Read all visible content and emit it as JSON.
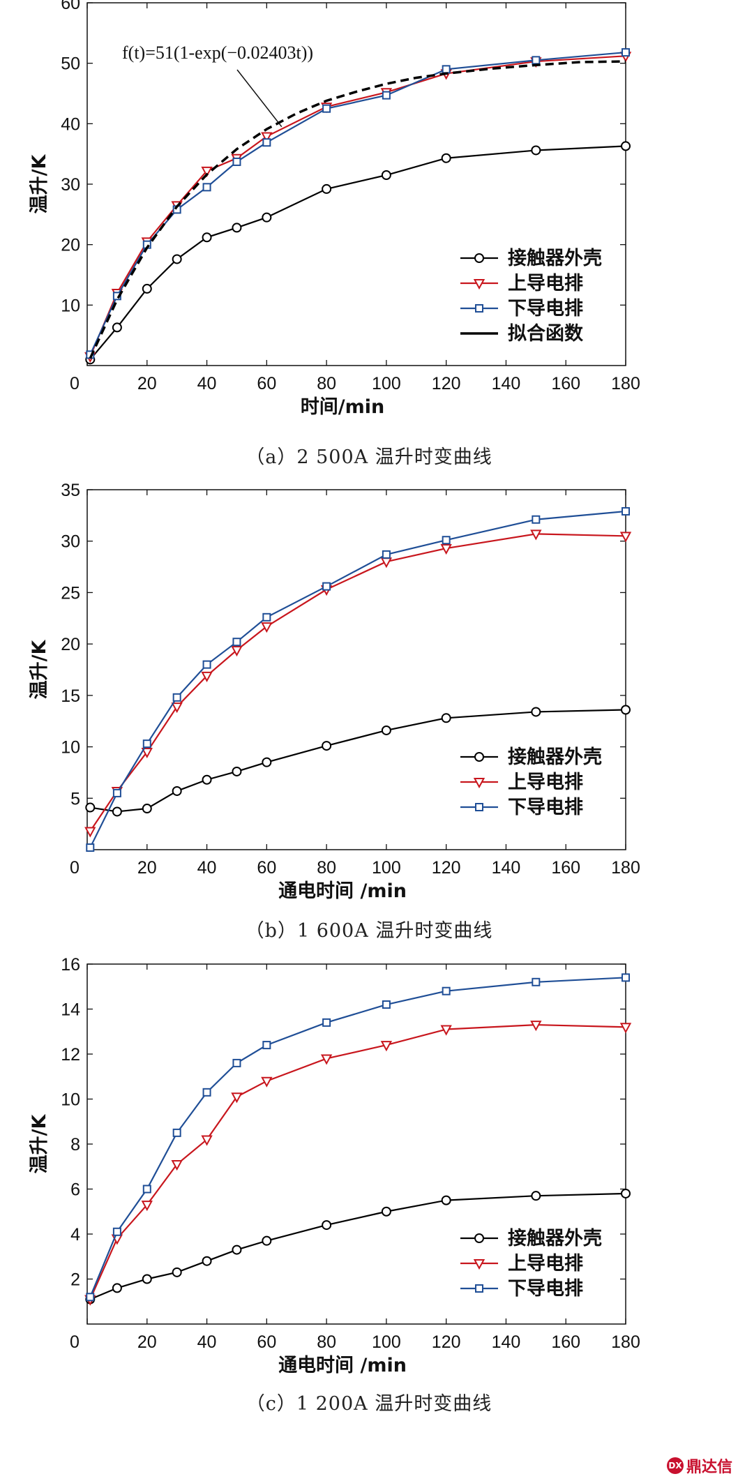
{
  "chart_data": [
    {
      "type": "line",
      "xlabel": "时间/min",
      "ylabel": "温升/K",
      "xlim": [
        0,
        180
      ],
      "ylim": [
        0,
        60
      ],
      "xticks": [
        0,
        20,
        40,
        60,
        80,
        100,
        120,
        140,
        160,
        180
      ],
      "yticks": [
        10,
        20,
        30,
        40,
        50,
        60
      ],
      "legend_position": "bottom-right",
      "annotation": "f(t)=51(1-exp(−0.02403t))",
      "caption": "（a）2 500A 温升时变曲线",
      "series": [
        {
          "name": "接触器外壳",
          "color": "#000000",
          "marker": "circle",
          "x": [
            1,
            10,
            20,
            30,
            40,
            50,
            60,
            80,
            100,
            120,
            150,
            180
          ],
          "y": [
            1.0,
            6.3,
            12.7,
            17.6,
            21.2,
            22.8,
            24.5,
            29.2,
            31.5,
            34.3,
            35.6,
            36.3
          ]
        },
        {
          "name": "上导电排",
          "color": "#c8161d",
          "marker": "triangle-down",
          "x": [
            1,
            10,
            20,
            30,
            40,
            50,
            60,
            80,
            100,
            120,
            150,
            180
          ],
          "y": [
            1.5,
            12.0,
            20.5,
            26.5,
            32.2,
            34.3,
            37.9,
            42.8,
            45.2,
            48.3,
            50.3,
            51.2
          ]
        },
        {
          "name": "下导电排",
          "color": "#1f4e96",
          "marker": "square",
          "x": [
            1,
            10,
            20,
            30,
            40,
            50,
            60,
            80,
            100,
            120,
            150,
            180
          ],
          "y": [
            1.8,
            11.5,
            20.0,
            25.8,
            29.5,
            33.7,
            36.9,
            42.5,
            44.7,
            49.0,
            50.5,
            51.8
          ]
        },
        {
          "name": "拟合函数",
          "color": "#000000",
          "marker": "none",
          "dash": true,
          "x": [
            1,
            10,
            20,
            30,
            40,
            50,
            60,
            70,
            80,
            90,
            100,
            110,
            120,
            135,
            150,
            165,
            180
          ],
          "y": [
            1.2,
            10.9,
            19.5,
            26.3,
            31.6,
            35.8,
            39.1,
            41.7,
            43.8,
            45.3,
            46.6,
            47.6,
            48.3,
            49.1,
            49.7,
            50.2,
            50.3
          ]
        }
      ]
    },
    {
      "type": "line",
      "xlabel": "通电时间 /min",
      "ylabel": "温升/K",
      "xlim": [
        0,
        180
      ],
      "ylim": [
        0,
        35
      ],
      "xticks": [
        0,
        20,
        40,
        60,
        80,
        100,
        120,
        140,
        160,
        180
      ],
      "yticks": [
        5,
        10,
        15,
        20,
        25,
        30,
        35
      ],
      "legend_position": "bottom-right",
      "caption": "（b）1 600A 温升时变曲线",
      "series": [
        {
          "name": "接触器外壳",
          "color": "#000000",
          "marker": "circle",
          "x": [
            1,
            10,
            20,
            30,
            40,
            50,
            60,
            80,
            100,
            120,
            150,
            180
          ],
          "y": [
            4.1,
            3.7,
            4.0,
            5.7,
            6.8,
            7.6,
            8.5,
            10.1,
            11.6,
            12.8,
            13.4,
            13.6
          ]
        },
        {
          "name": "上导电排",
          "color": "#c8161d",
          "marker": "triangle-down",
          "x": [
            1,
            10,
            20,
            30,
            40,
            50,
            60,
            80,
            100,
            120,
            150,
            180
          ],
          "y": [
            1.8,
            5.7,
            9.5,
            13.9,
            16.9,
            19.4,
            21.7,
            25.3,
            28.0,
            29.3,
            30.7,
            30.5
          ]
        },
        {
          "name": "下导电排",
          "color": "#1f4e96",
          "marker": "square",
          "x": [
            1,
            10,
            20,
            30,
            40,
            50,
            60,
            80,
            100,
            120,
            150,
            180
          ],
          "y": [
            0.2,
            5.5,
            10.3,
            14.8,
            18.0,
            20.2,
            22.6,
            25.6,
            28.7,
            30.1,
            32.1,
            32.9
          ]
        }
      ]
    },
    {
      "type": "line",
      "xlabel": "通电时间 /min",
      "ylabel": "温升/K",
      "xlim": [
        0,
        180
      ],
      "ylim": [
        0,
        16
      ],
      "xticks": [
        0,
        20,
        40,
        60,
        80,
        100,
        120,
        140,
        160,
        180
      ],
      "yticks": [
        2,
        4,
        6,
        8,
        10,
        12,
        14,
        16
      ],
      "legend_position": "bottom-right",
      "caption": "（c）1 200A 温升时变曲线",
      "series": [
        {
          "name": "接触器外壳",
          "color": "#000000",
          "marker": "circle",
          "x": [
            1,
            10,
            20,
            30,
            40,
            50,
            60,
            80,
            100,
            120,
            150,
            180
          ],
          "y": [
            1.1,
            1.6,
            2.0,
            2.3,
            2.8,
            3.3,
            3.7,
            4.4,
            5.0,
            5.5,
            5.7,
            5.8
          ]
        },
        {
          "name": "上导电排",
          "color": "#c8161d",
          "marker": "triangle-down",
          "x": [
            1,
            10,
            20,
            30,
            40,
            50,
            60,
            80,
            100,
            120,
            150,
            180
          ],
          "y": [
            1.1,
            3.8,
            5.3,
            7.1,
            8.2,
            10.1,
            10.8,
            11.8,
            12.4,
            13.1,
            13.3,
            13.2
          ]
        },
        {
          "name": "下导电排",
          "color": "#1f4e96",
          "marker": "square",
          "x": [
            1,
            10,
            20,
            30,
            40,
            50,
            60,
            80,
            100,
            120,
            150,
            180
          ],
          "y": [
            1.2,
            4.1,
            6.0,
            8.5,
            10.3,
            11.6,
            12.4,
            13.4,
            14.2,
            14.8,
            15.2,
            15.4
          ]
        }
      ]
    }
  ],
  "watermark": {
    "text": "鼎达信"
  }
}
